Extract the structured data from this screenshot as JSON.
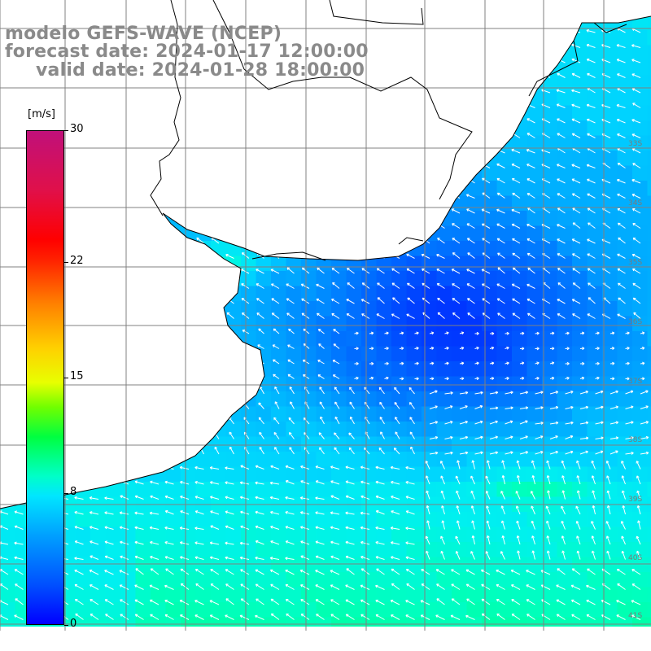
{
  "title": {
    "line1": "modelo GEFS-WAVE (NCEP)",
    "line2": "forecast date: 2024-01-17 12:00:00",
    "line3": "valid date: 2024-01-28 18:00:00"
  },
  "colorbar": {
    "unit": "[m/s]",
    "min": 0,
    "max": 30,
    "ticks": [
      {
        "value": 30,
        "label": "30"
      },
      {
        "value": 22,
        "label": "22"
      },
      {
        "value": 15,
        "label": "15"
      },
      {
        "value": 8,
        "label": "8"
      },
      {
        "value": 0,
        "label": "0"
      }
    ]
  },
  "latitude_labels": [
    "33S",
    "34S",
    "35S",
    "36S",
    "37S",
    "38S",
    "39S",
    "40S",
    "41S"
  ],
  "colors": {
    "land": "#ffffff",
    "grid": "#808080",
    "coast": "#000000",
    "arrows": "#ffffff",
    "title_text": "#8a8a8a"
  }
}
